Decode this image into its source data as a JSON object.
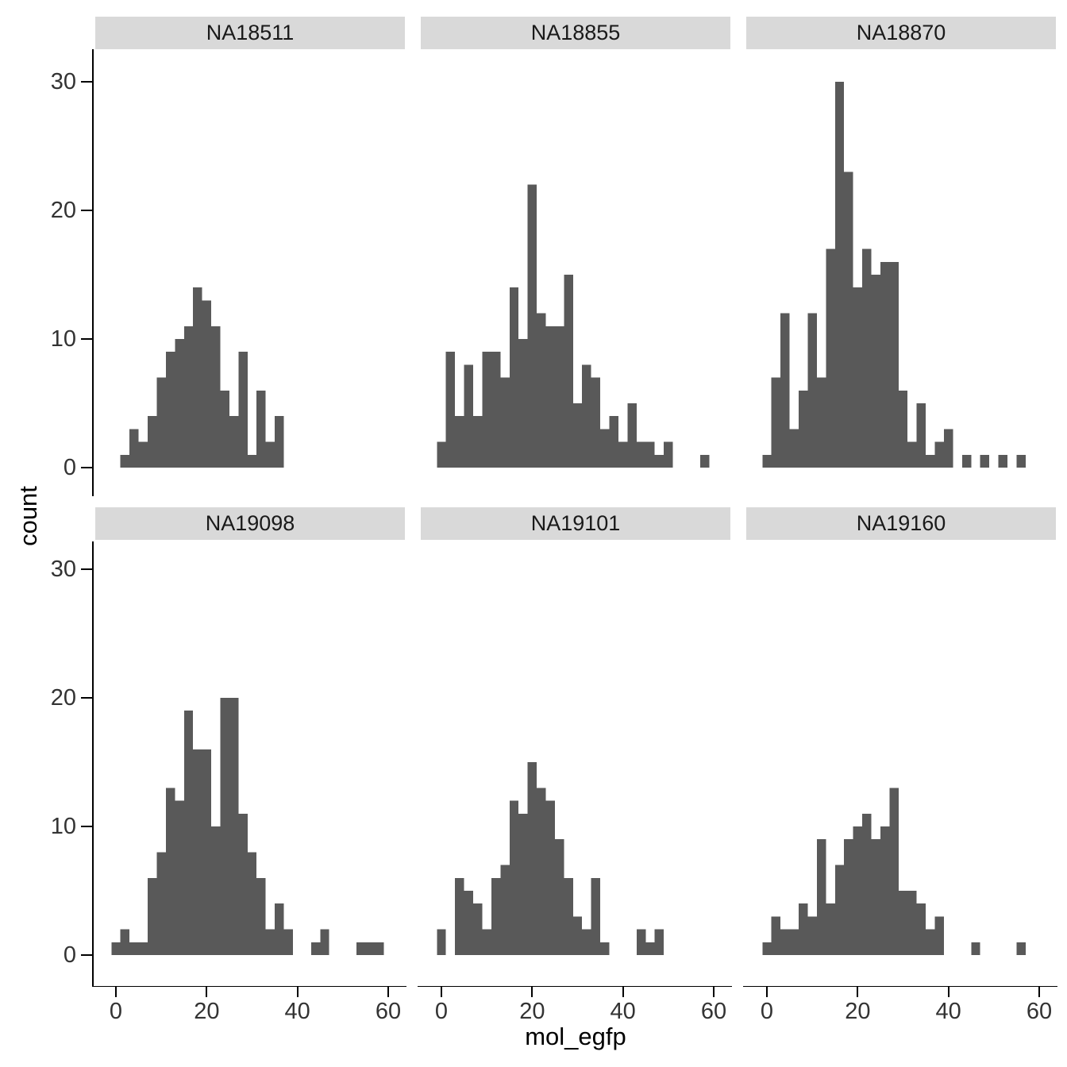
{
  "figure": {
    "background": "#ffffff",
    "bar_color": "#595959",
    "strip_bg": "#d9d9d9",
    "strip_text_color": "#1a1a1a",
    "axis_color": "#000000",
    "tick_label_color": "#333333"
  },
  "axes": {
    "x_title": "mol_egfp",
    "y_title": "count",
    "x_ticks": [
      0,
      20,
      40,
      60
    ],
    "y_ticks": [
      0,
      10,
      20,
      30
    ],
    "xlim": [
      -2,
      62
    ],
    "ylim": [
      0,
      30
    ],
    "grid": false,
    "legend": "none"
  },
  "chart_data": [
    {
      "type": "bar",
      "subtype": "histogram",
      "name": "NA18511",
      "xlabel": "mol_egfp",
      "ylabel": "count",
      "bin_start": 1,
      "binwidth": 2,
      "counts": [
        1,
        3,
        2,
        4,
        7,
        9,
        10,
        11,
        14,
        13,
        11,
        6,
        4,
        9,
        1,
        6,
        2,
        4
      ]
    },
    {
      "type": "bar",
      "subtype": "histogram",
      "name": "NA18855",
      "xlabel": "mol_egfp",
      "ylabel": "count",
      "bin_start": -1,
      "binwidth": 2,
      "counts": [
        2,
        9,
        4,
        8,
        4,
        9,
        9,
        7,
        14,
        10,
        22,
        12,
        11,
        11,
        15,
        5,
        8,
        7,
        3,
        4,
        2,
        5,
        2,
        2,
        1,
        2,
        0,
        0,
        0,
        1
      ]
    },
    {
      "type": "bar",
      "subtype": "histogram",
      "name": "NA18870",
      "xlabel": "mol_egfp",
      "ylabel": "count",
      "bin_start": -1,
      "binwidth": 2,
      "counts": [
        1,
        7,
        12,
        3,
        6,
        12,
        7,
        17,
        30,
        23,
        14,
        17,
        15,
        16,
        16,
        6,
        2,
        5,
        1,
        2,
        3,
        0,
        1,
        0,
        1,
        0,
        1,
        0,
        1
      ]
    },
    {
      "type": "bar",
      "subtype": "histogram",
      "name": "NA19098",
      "xlabel": "mol_egfp",
      "ylabel": "count",
      "bin_start": -1,
      "binwidth": 2,
      "counts": [
        1,
        2,
        1,
        1,
        6,
        8,
        13,
        12,
        19,
        16,
        16,
        10,
        20,
        20,
        11,
        8,
        6,
        2,
        4,
        2,
        0,
        0,
        1,
        2,
        0,
        0,
        0,
        1,
        1,
        1
      ]
    },
    {
      "type": "bar",
      "subtype": "histogram",
      "name": "NA19101",
      "xlabel": "mol_egfp",
      "ylabel": "count",
      "bin_start": -1,
      "binwidth": 2,
      "counts": [
        2,
        0,
        6,
        5,
        4,
        2,
        6,
        7,
        12,
        11,
        15,
        13,
        12,
        9,
        6,
        3,
        2,
        6,
        1,
        0,
        0,
        0,
        2,
        1,
        2
      ]
    },
    {
      "type": "bar",
      "subtype": "histogram",
      "name": "NA19160",
      "xlabel": "mol_egfp",
      "ylabel": "count",
      "bin_start": -1,
      "binwidth": 2,
      "counts": [
        1,
        3,
        2,
        2,
        4,
        3,
        9,
        4,
        7,
        9,
        10,
        11,
        9,
        10,
        13,
        5,
        5,
        4,
        2,
        3,
        0,
        0,
        0,
        1,
        0,
        0,
        0,
        0,
        1
      ]
    }
  ]
}
